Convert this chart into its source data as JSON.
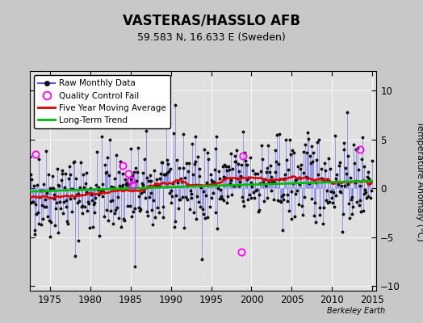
{
  "title": "VASTERAS/HASSLO AFB",
  "subtitle": "59.583 N, 16.633 E (Sweden)",
  "ylabel": "Temperature Anomaly (°C)",
  "watermark": "Berkeley Earth",
  "xlim": [
    1972.5,
    2015.5
  ],
  "ylim": [
    -10.5,
    12
  ],
  "yticks": [
    -10,
    -5,
    0,
    5,
    10
  ],
  "xticks": [
    1975,
    1980,
    1985,
    1990,
    1995,
    2000,
    2005,
    2010,
    2015
  ],
  "bg_color": "#c8c8c8",
  "plot_bg_color": "#e0e0e0",
  "raw_line_color": "#5555ee",
  "raw_dot_color": "#111111",
  "moving_avg_color": "#dd0000",
  "trend_color": "#00bb00",
  "qc_fail_color": "#ff00ff",
  "seed": 42,
  "n_months": 516,
  "start_year": 1972.0,
  "qc_fail_points": [
    [
      1973.25,
      3.5
    ],
    [
      1984.0,
      2.3
    ],
    [
      1984.75,
      1.5
    ],
    [
      1985.0,
      0.8
    ],
    [
      1985.25,
      0.3
    ],
    [
      1998.75,
      -6.5
    ],
    [
      1999.0,
      3.3
    ],
    [
      2013.5,
      4.0
    ]
  ]
}
